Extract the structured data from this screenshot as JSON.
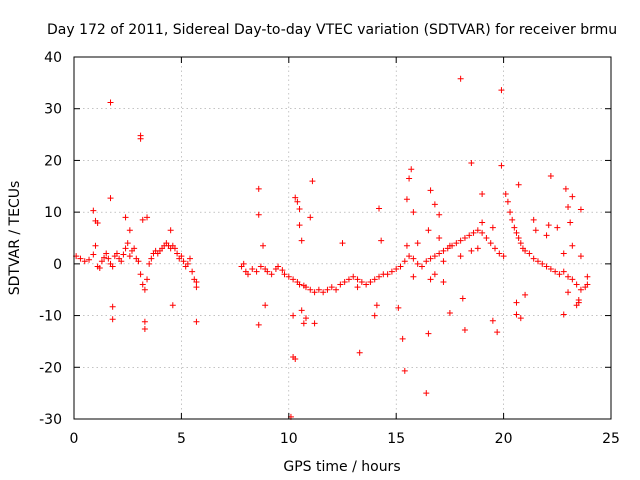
{
  "chart_data": {
    "type": "scatter",
    "title": "Day 172 of 2011, Sidereal Day-to-day VTEC variation (SDTVAR) for receiver brmu",
    "xlabel": "GPS time / hours",
    "ylabel": "SDTVAR / TECUs",
    "xlim": [
      0,
      25
    ],
    "ylim": [
      -30,
      40
    ],
    "xticks": [
      0,
      5,
      10,
      15,
      20,
      25
    ],
    "xtick_labels": [
      "0",
      "5",
      "10",
      "15",
      "20",
      "25"
    ],
    "yticks": [
      -30,
      -20,
      -10,
      0,
      10,
      20,
      30,
      40
    ],
    "ytick_labels": [
      "-30",
      "-20",
      "-10",
      "0",
      "10",
      "20",
      "30",
      "40"
    ],
    "grid": true,
    "marker": "+",
    "color": "#ff0000",
    "series": [
      {
        "name": "SDTVAR",
        "points": [
          [
            0.1,
            1.5
          ],
          [
            0.3,
            1.0
          ],
          [
            0.5,
            0.5
          ],
          [
            0.7,
            0.8
          ],
          [
            0.9,
            1.8
          ],
          [
            1.0,
            3.5
          ],
          [
            1.1,
            -0.5
          ],
          [
            1.2,
            -0.8
          ],
          [
            1.3,
            0.5
          ],
          [
            1.4,
            1.2
          ],
          [
            1.5,
            2.0
          ],
          [
            1.6,
            1.0
          ],
          [
            1.7,
            0.0
          ],
          [
            1.8,
            -0.5
          ],
          [
            1.9,
            1.5
          ],
          [
            2.0,
            2.0
          ],
          [
            2.1,
            1.0
          ],
          [
            2.2,
            0.5
          ],
          [
            2.3,
            1.8
          ],
          [
            2.4,
            3.0
          ],
          [
            2.5,
            4.0
          ],
          [
            2.6,
            1.5
          ],
          [
            2.7,
            2.5
          ],
          [
            2.8,
            3.0
          ],
          [
            2.9,
            1.0
          ],
          [
            3.0,
            0.5
          ],
          [
            3.1,
            -2.0
          ],
          [
            3.2,
            -4.0
          ],
          [
            3.3,
            -5.0
          ],
          [
            3.4,
            -3.0
          ],
          [
            3.5,
            0.0
          ],
          [
            3.6,
            1.0
          ],
          [
            3.7,
            2.0
          ],
          [
            3.8,
            2.5
          ],
          [
            3.9,
            2.0
          ],
          [
            4.0,
            2.5
          ],
          [
            4.1,
            3.0
          ],
          [
            4.2,
            3.5
          ],
          [
            4.3,
            4.0
          ],
          [
            4.4,
            3.5
          ],
          [
            4.5,
            3.0
          ],
          [
            4.6,
            3.5
          ],
          [
            4.7,
            3.0
          ],
          [
            4.8,
            2.0
          ],
          [
            4.9,
            1.0
          ],
          [
            5.0,
            1.5
          ],
          [
            5.1,
            0.5
          ],
          [
            5.2,
            -0.5
          ],
          [
            5.3,
            0.0
          ],
          [
            5.4,
            1.0
          ],
          [
            5.5,
            -1.5
          ],
          [
            5.6,
            -3.0
          ],
          [
            5.7,
            -3.5
          ],
          [
            5.7,
            -4.5
          ],
          [
            0.9,
            10.3
          ],
          [
            1.0,
            8.3
          ],
          [
            1.1,
            7.9
          ],
          [
            1.7,
            12.7
          ],
          [
            1.7,
            31.2
          ],
          [
            1.8,
            -8.3
          ],
          [
            1.8,
            -10.7
          ],
          [
            2.4,
            9.0
          ],
          [
            2.6,
            6.5
          ],
          [
            3.1,
            24.2
          ],
          [
            3.1,
            24.8
          ],
          [
            3.2,
            8.5
          ],
          [
            3.3,
            -11.2
          ],
          [
            3.3,
            -12.6
          ],
          [
            3.4,
            9.0
          ],
          [
            4.5,
            6.5
          ],
          [
            4.6,
            -8.0
          ],
          [
            5.7,
            -11.2
          ],
          [
            7.8,
            -0.5
          ],
          [
            7.9,
            0.0
          ],
          [
            8.0,
            -1.5
          ],
          [
            8.1,
            -2.0
          ],
          [
            8.3,
            -1.0
          ],
          [
            8.5,
            -1.5
          ],
          [
            8.7,
            -0.5
          ],
          [
            8.9,
            -1.0
          ],
          [
            9.0,
            -1.5
          ],
          [
            9.2,
            -2.0
          ],
          [
            9.4,
            -1.0
          ],
          [
            9.5,
            -0.5
          ],
          [
            9.7,
            -1.2
          ],
          [
            9.8,
            -2.0
          ],
          [
            10.0,
            -2.5
          ],
          [
            10.2,
            -3.0
          ],
          [
            10.4,
            -3.5
          ],
          [
            10.5,
            -4.0
          ],
          [
            10.7,
            -4.2
          ],
          [
            10.8,
            -4.5
          ],
          [
            11.0,
            -5.0
          ],
          [
            11.2,
            -5.5
          ],
          [
            11.4,
            -5.0
          ],
          [
            11.6,
            -5.5
          ],
          [
            11.8,
            -5.0
          ],
          [
            12.0,
            -4.5
          ],
          [
            12.2,
            -5.0
          ],
          [
            12.4,
            -4.0
          ],
          [
            12.6,
            -3.5
          ],
          [
            12.8,
            -3.0
          ],
          [
            13.0,
            -2.5
          ],
          [
            13.2,
            -3.0
          ],
          [
            13.4,
            -3.5
          ],
          [
            13.6,
            -4.0
          ],
          [
            13.8,
            -3.5
          ],
          [
            14.0,
            -3.0
          ],
          [
            14.2,
            -2.5
          ],
          [
            14.4,
            -2.0
          ],
          [
            14.6,
            -2.0
          ],
          [
            14.8,
            -1.5
          ],
          [
            15.0,
            -1.0
          ],
          [
            15.2,
            -0.5
          ],
          [
            15.4,
            0.5
          ],
          [
            15.6,
            1.5
          ],
          [
            15.8,
            1.0
          ],
          [
            16.0,
            0.0
          ],
          [
            16.2,
            -0.5
          ],
          [
            16.4,
            0.5
          ],
          [
            16.6,
            1.0
          ],
          [
            16.8,
            1.5
          ],
          [
            17.0,
            2.0
          ],
          [
            17.2,
            2.5
          ],
          [
            17.4,
            3.0
          ],
          [
            17.6,
            3.5
          ],
          [
            17.8,
            4.0
          ],
          [
            18.0,
            4.5
          ],
          [
            18.2,
            5.0
          ],
          [
            18.4,
            5.5
          ],
          [
            18.6,
            6.0
          ],
          [
            18.8,
            6.5
          ],
          [
            19.0,
            6.0
          ],
          [
            19.2,
            5.0
          ],
          [
            19.4,
            4.0
          ],
          [
            19.6,
            3.0
          ],
          [
            19.8,
            2.0
          ],
          [
            20.0,
            1.5
          ],
          [
            20.1,
            13.5
          ],
          [
            20.2,
            12.0
          ],
          [
            20.3,
            10.0
          ],
          [
            20.4,
            8.5
          ],
          [
            20.5,
            7.0
          ],
          [
            20.6,
            6.0
          ],
          [
            20.7,
            5.0
          ],
          [
            20.8,
            4.0
          ],
          [
            20.9,
            3.0
          ],
          [
            21.0,
            2.5
          ],
          [
            21.2,
            2.0
          ],
          [
            21.4,
            1.0
          ],
          [
            21.6,
            0.5
          ],
          [
            21.8,
            0.0
          ],
          [
            22.0,
            -0.5
          ],
          [
            22.2,
            -1.0
          ],
          [
            22.4,
            -1.5
          ],
          [
            22.6,
            -2.0
          ],
          [
            22.8,
            -1.5
          ],
          [
            23.0,
            -2.5
          ],
          [
            23.2,
            -3.0
          ],
          [
            23.4,
            -4.0
          ],
          [
            23.6,
            -5.0
          ],
          [
            23.8,
            -4.5
          ],
          [
            16.0,
            4.0
          ],
          [
            16.5,
            6.5
          ],
          [
            17.0,
            5.0
          ],
          [
            17.5,
            3.5
          ],
          [
            18.0,
            1.5
          ],
          [
            18.5,
            2.5
          ],
          [
            19.0,
            8.0
          ],
          [
            19.5,
            7.0
          ],
          [
            17.2,
            0.5
          ],
          [
            18.8,
            3.0
          ],
          [
            16.8,
            -2.0
          ],
          [
            17.2,
            -3.5
          ],
          [
            16.6,
            -3.0
          ],
          [
            15.5,
            3.5
          ],
          [
            15.8,
            -2.5
          ],
          [
            22.8,
            2.0
          ],
          [
            23.2,
            3.5
          ],
          [
            23.6,
            1.5
          ],
          [
            23.0,
            -5.5
          ],
          [
            23.5,
            -7.0
          ],
          [
            8.6,
            14.5
          ],
          [
            8.6,
            9.5
          ],
          [
            8.6,
            -11.8
          ],
          [
            8.8,
            3.5
          ],
          [
            8.9,
            -8.0
          ],
          [
            10.1,
            -29.6
          ],
          [
            10.2,
            -18.0
          ],
          [
            10.3,
            -18.4
          ],
          [
            10.3,
            12.8
          ],
          [
            10.4,
            12.0
          ],
          [
            10.5,
            10.6
          ],
          [
            10.5,
            7.5
          ],
          [
            10.6,
            4.5
          ],
          [
            10.6,
            -9.0
          ],
          [
            10.7,
            -11.5
          ],
          [
            10.8,
            -10.5
          ],
          [
            11.0,
            9.0
          ],
          [
            11.1,
            16.0
          ],
          [
            11.2,
            -11.5
          ],
          [
            10.2,
            -10.0
          ],
          [
            12.5,
            4.0
          ],
          [
            13.2,
            -4.5
          ],
          [
            13.3,
            -17.2
          ],
          [
            14.0,
            -10.0
          ],
          [
            14.1,
            -8.0
          ],
          [
            14.2,
            10.7
          ],
          [
            14.3,
            4.5
          ],
          [
            15.1,
            -8.5
          ],
          [
            15.3,
            -14.5
          ],
          [
            15.4,
            -20.7
          ],
          [
            15.5,
            12.5
          ],
          [
            15.6,
            16.5
          ],
          [
            15.7,
            18.3
          ],
          [
            15.8,
            10.0
          ],
          [
            16.4,
            -25.0
          ],
          [
            16.5,
            -13.5
          ],
          [
            16.6,
            14.2
          ],
          [
            16.8,
            11.5
          ],
          [
            17.0,
            9.5
          ],
          [
            17.5,
            -9.5
          ],
          [
            18.0,
            35.8
          ],
          [
            18.1,
            -6.7
          ],
          [
            18.2,
            -12.8
          ],
          [
            18.5,
            19.5
          ],
          [
            19.5,
            -11.0
          ],
          [
            19.7,
            -13.2
          ],
          [
            19.9,
            33.6
          ],
          [
            19.9,
            19.0
          ],
          [
            20.6,
            -7.5
          ],
          [
            20.6,
            -9.8
          ],
          [
            20.7,
            15.3
          ],
          [
            20.8,
            -10.5
          ],
          [
            21.4,
            8.5
          ],
          [
            21.5,
            6.5
          ],
          [
            22.0,
            5.5
          ],
          [
            22.1,
            7.5
          ],
          [
            22.2,
            17.0
          ],
          [
            22.8,
            -9.8
          ],
          [
            22.9,
            14.5
          ],
          [
            23.0,
            11.0
          ],
          [
            23.1,
            8.0
          ],
          [
            23.2,
            13.0
          ],
          [
            23.4,
            -8.0
          ],
          [
            23.5,
            -7.5
          ],
          [
            23.6,
            10.5
          ],
          [
            23.9,
            -2.5
          ],
          [
            23.9,
            -4.0
          ],
          [
            22.5,
            7.0
          ],
          [
            21.0,
            -6.0
          ],
          [
            19.0,
            13.5
          ]
        ]
      }
    ]
  }
}
